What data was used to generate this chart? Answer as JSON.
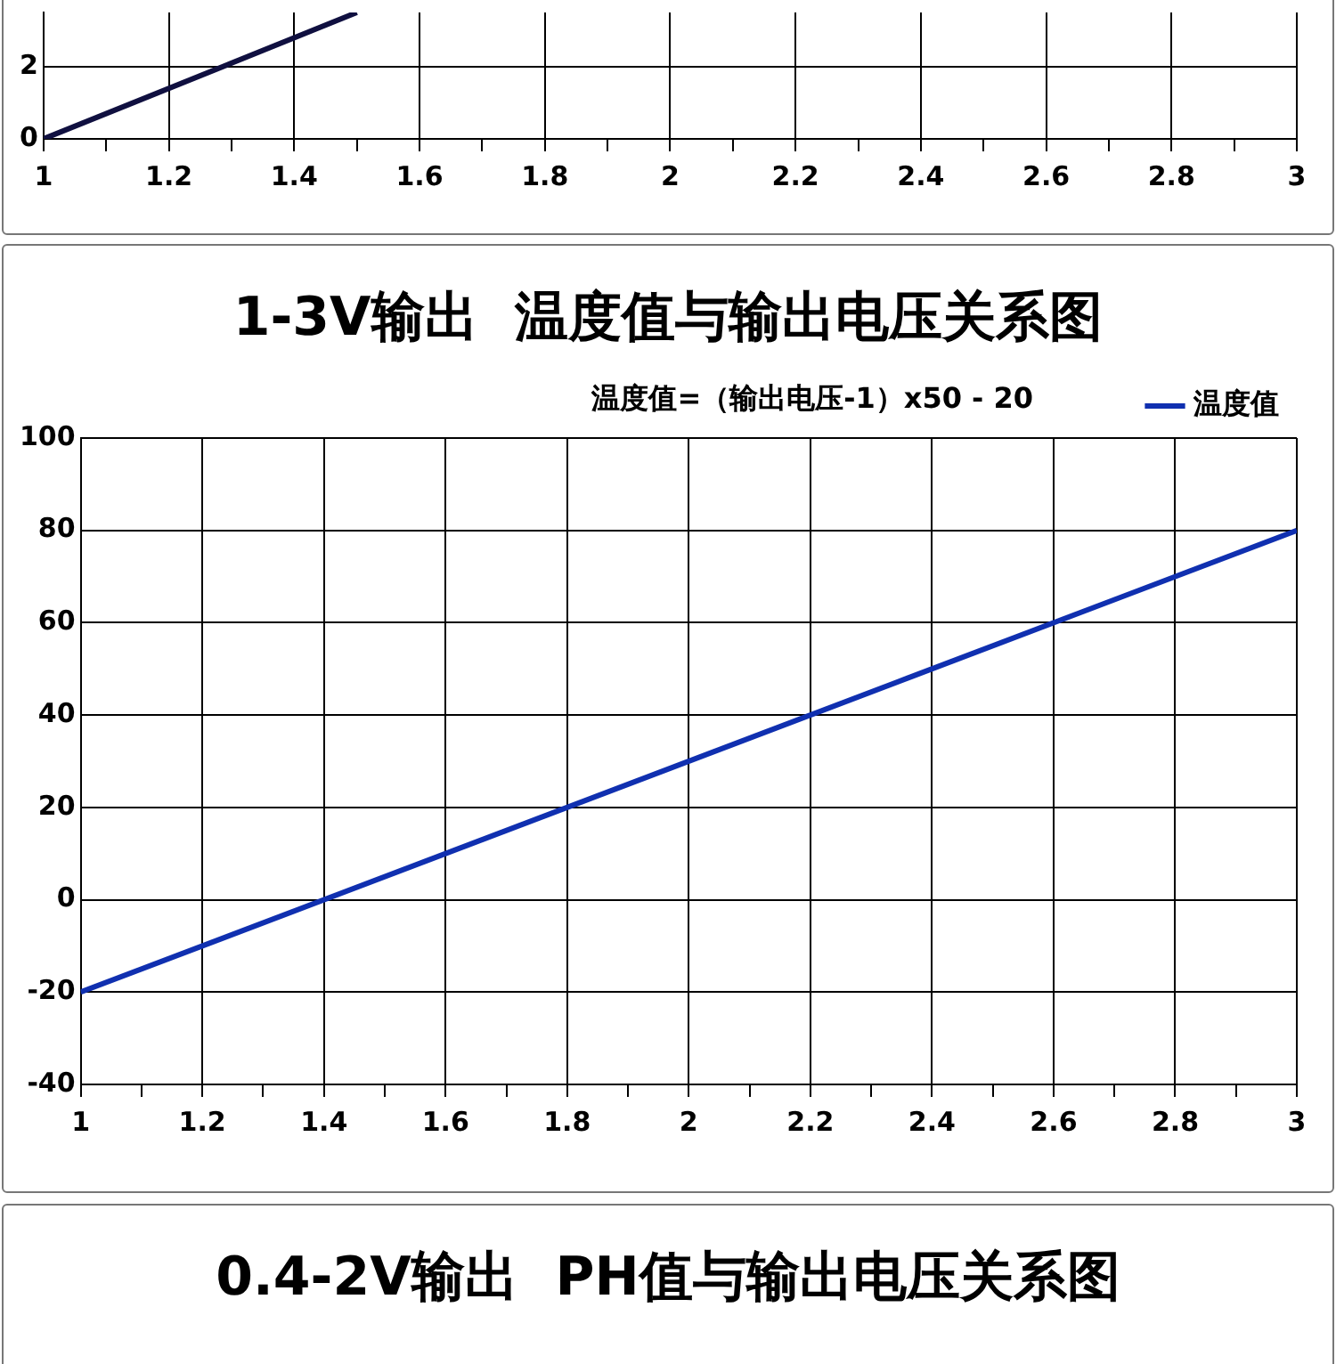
{
  "chart_data": [
    {
      "type": "line",
      "x": [
        1,
        1.5
      ],
      "series": [
        {
          "color": "#101040",
          "values": [
            0,
            3.5
          ]
        }
      ],
      "xlim": [
        1,
        3
      ],
      "xticks": [
        1,
        {
          "value": 1.1,
          "label": null
        },
        1.2,
        {
          "value": 1.3,
          "label": null
        },
        1.4,
        {
          "value": 1.5,
          "label": null
        },
        1.6,
        {
          "value": 1.7,
          "label": null
        },
        1.8,
        {
          "value": 1.9,
          "label": null
        },
        2,
        {
          "value": 2.1,
          "label": null
        },
        2.2,
        {
          "value": 2.3,
          "label": null
        },
        2.4,
        {
          "value": 2.5,
          "label": null
        },
        2.6,
        {
          "value": 2.7,
          "label": null
        },
        2.8,
        {
          "value": 2.9,
          "label": null
        },
        3
      ],
      "ylim": [
        0,
        3.5
      ],
      "yticks": [
        0,
        2
      ],
      "grid": true
    },
    {
      "type": "line",
      "title": "1-3V输出  温度值与输出电压关系图",
      "subtitle": "温度值=（输出电压-1）x50 - 20",
      "x": [
        1,
        3
      ],
      "series": [
        {
          "name": "温度值",
          "color": "#1030b0",
          "values": [
            -20,
            80
          ]
        }
      ],
      "xlim": [
        1,
        3
      ],
      "xticks": [
        1,
        {
          "value": 1.1,
          "label": null
        },
        1.2,
        {
          "value": 1.3,
          "label": null
        },
        1.4,
        {
          "value": 1.5,
          "label": null
        },
        1.6,
        {
          "value": 1.7,
          "label": null
        },
        1.8,
        {
          "value": 1.9,
          "label": null
        },
        2,
        {
          "value": 2.1,
          "label": null
        },
        2.2,
        {
          "value": 2.3,
          "label": null
        },
        2.4,
        {
          "value": 2.5,
          "label": null
        },
        2.6,
        {
          "value": 2.7,
          "label": null
        },
        2.8,
        {
          "value": 2.9,
          "label": null
        },
        3
      ],
      "ylim": [
        -40,
        100
      ],
      "yticks": [
        -40,
        -20,
        0,
        20,
        40,
        60,
        80,
        100
      ],
      "grid": true,
      "legend": "top right"
    },
    {
      "type": "other",
      "title": "0.4-2V输出  PH值与输出电压关系图"
    }
  ]
}
